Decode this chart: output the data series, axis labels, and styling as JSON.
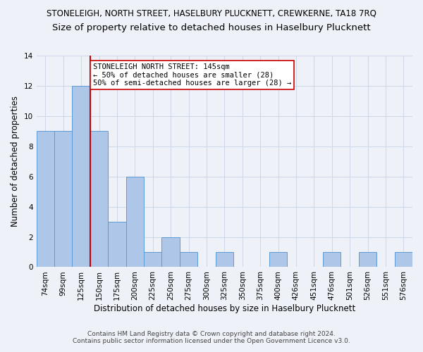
{
  "title": "STONELEIGH, NORTH STREET, HASELBURY PLUCKNETT, CREWKERNE, TA18 7RQ",
  "subtitle": "Size of property relative to detached houses in Haselbury Plucknett",
  "xlabel": "Distribution of detached houses by size in Haselbury Plucknett",
  "ylabel": "Number of detached properties",
  "footer_line1": "Contains HM Land Registry data © Crown copyright and database right 2024.",
  "footer_line2": "Contains public sector information licensed under the Open Government Licence v3.0.",
  "bin_labels": [
    "74sqm",
    "99sqm",
    "125sqm",
    "150sqm",
    "175sqm",
    "200sqm",
    "225sqm",
    "250sqm",
    "275sqm",
    "300sqm",
    "325sqm",
    "350sqm",
    "375sqm",
    "400sqm",
    "426sqm",
    "451sqm",
    "476sqm",
    "501sqm",
    "526sqm",
    "551sqm",
    "576sqm"
  ],
  "bar_values": [
    9,
    9,
    12,
    9,
    3,
    6,
    1,
    2,
    1,
    0,
    1,
    0,
    0,
    1,
    0,
    0,
    1,
    0,
    1,
    0,
    1
  ],
  "bar_color": "#aec6e8",
  "bar_edge_color": "#5b9bd5",
  "highlight_bar_index": 2,
  "highlight_line_color": "#cc0000",
  "annotation_text": "STONELEIGH NORTH STREET: 145sqm\n← 50% of detached houses are smaller (28)\n50% of semi-detached houses are larger (28) →",
  "annotation_box_color": "white",
  "annotation_box_edge_color": "#cc0000",
  "ylim": [
    0,
    14
  ],
  "yticks": [
    0,
    2,
    4,
    6,
    8,
    10,
    12,
    14
  ],
  "grid_color": "#d0d8e8",
  "background_color": "#eef2f8",
  "plot_bg_color": "#eef2f8",
  "title_fontsize": 8.5,
  "subtitle_fontsize": 9.5,
  "xlabel_fontsize": 8.5,
  "ylabel_fontsize": 8.5,
  "tick_fontsize": 7.5,
  "annotation_fontsize": 7.5,
  "footer_fontsize": 6.5
}
